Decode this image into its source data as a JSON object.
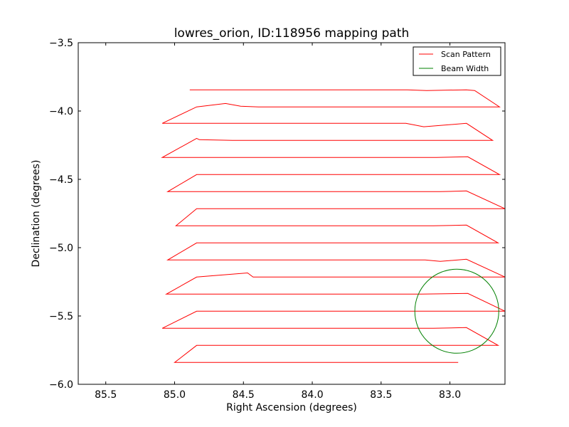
{
  "chart_data": {
    "type": "line",
    "title": "lowres_orion, ID:118956 mapping path",
    "xlabel": "Right Ascension (degrees)",
    "ylabel": "Declination (degrees)",
    "xlim": [
      85.7,
      82.6
    ],
    "ylim": [
      -6.0,
      -3.5
    ],
    "x_inverted": true,
    "xticks": [
      85.5,
      85.0,
      84.5,
      84.0,
      83.5,
      83.0
    ],
    "xtick_labels": [
      "85.5",
      "85.0",
      "84.5",
      "84.0",
      "83.5",
      "83.0"
    ],
    "yticks": [
      -3.5,
      -4.0,
      -4.5,
      -5.0,
      -5.5,
      -6.0
    ],
    "ytick_labels": [
      "−3.5",
      "−4.0",
      "−4.5",
      "−5.0",
      "−5.5",
      "−6.0"
    ],
    "grid": false,
    "legend_position": "top-right",
    "series": [
      {
        "name": "Scan Pattern",
        "color": "#ff0000",
        "points": [
          [
            84.89,
            -3.845
          ],
          [
            83.31,
            -3.845
          ],
          [
            83.17,
            -3.85
          ],
          [
            82.88,
            -3.845
          ],
          [
            82.82,
            -3.85
          ],
          [
            82.64,
            -3.97
          ],
          [
            84.39,
            -3.97
          ],
          [
            84.52,
            -3.965
          ],
          [
            84.63,
            -3.945
          ],
          [
            84.84,
            -3.97
          ],
          [
            85.09,
            -4.09
          ],
          [
            83.32,
            -4.09
          ],
          [
            83.19,
            -4.115
          ],
          [
            82.88,
            -4.09
          ],
          [
            82.69,
            -4.215
          ],
          [
            84.58,
            -4.215
          ],
          [
            84.82,
            -4.21
          ],
          [
            84.84,
            -4.2
          ],
          [
            85.09,
            -4.34
          ],
          [
            83.1,
            -4.34
          ],
          [
            82.87,
            -4.335
          ],
          [
            82.64,
            -4.465
          ],
          [
            84.69,
            -4.465
          ],
          [
            84.84,
            -4.465
          ],
          [
            85.05,
            -4.59
          ],
          [
            83.2,
            -4.59
          ],
          [
            83.07,
            -4.59
          ],
          [
            82.88,
            -4.585
          ],
          [
            82.6,
            -4.715
          ],
          [
            84.63,
            -4.715
          ],
          [
            84.84,
            -4.715
          ],
          [
            84.99,
            -4.84
          ],
          [
            83.12,
            -4.84
          ],
          [
            82.88,
            -4.835
          ],
          [
            82.65,
            -4.965
          ],
          [
            84.68,
            -4.965
          ],
          [
            84.84,
            -4.965
          ],
          [
            85.05,
            -5.09
          ],
          [
            83.18,
            -5.09
          ],
          [
            83.07,
            -5.1
          ],
          [
            82.88,
            -5.085
          ],
          [
            82.6,
            -5.215
          ],
          [
            84.43,
            -5.215
          ],
          [
            84.47,
            -5.185
          ],
          [
            84.84,
            -5.215
          ],
          [
            85.06,
            -5.34
          ],
          [
            83.21,
            -5.34
          ],
          [
            82.87,
            -5.335
          ],
          [
            82.6,
            -5.465
          ],
          [
            84.67,
            -5.465
          ],
          [
            84.84,
            -5.465
          ],
          [
            85.09,
            -5.59
          ],
          [
            83.12,
            -5.59
          ],
          [
            82.88,
            -5.585
          ],
          [
            82.65,
            -5.715
          ],
          [
            84.66,
            -5.715
          ],
          [
            84.84,
            -5.715
          ],
          [
            85.0,
            -5.84
          ],
          [
            83.2,
            -5.84
          ],
          [
            82.94,
            -5.84
          ]
        ]
      },
      {
        "name": "Beam Width",
        "color": "#008000",
        "shape": "circle",
        "center": [
          82.95,
          -5.465
        ],
        "radius": 0.305
      }
    ]
  }
}
